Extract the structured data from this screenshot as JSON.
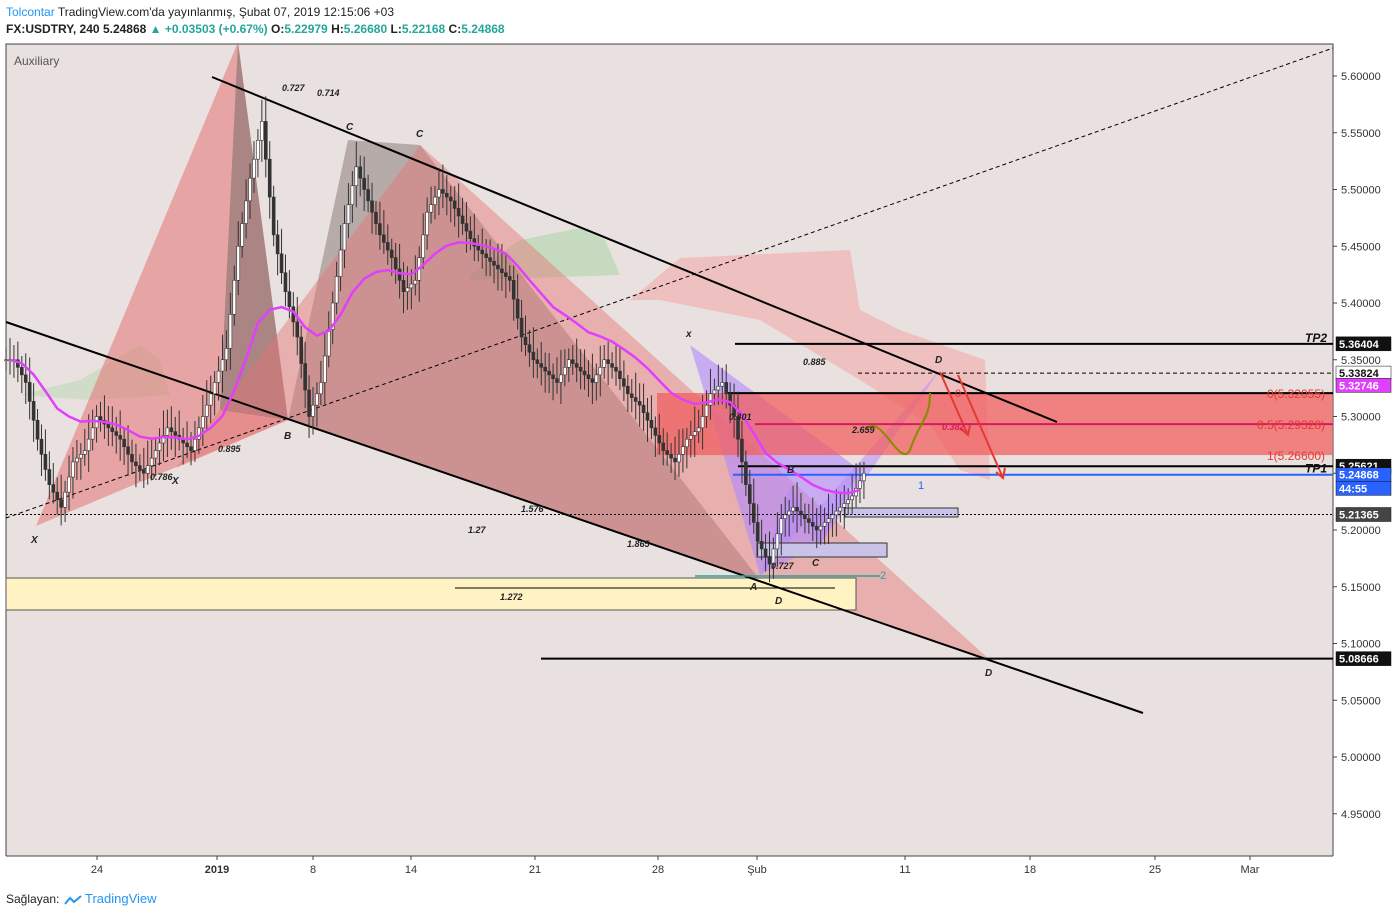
{
  "header": {
    "author": "Tolcontar",
    "published": "TradingView.com'da yayınlanmış, Şubat 07, 2019 12:15:06 +03",
    "symbol": "FX:USDTRY, 240",
    "last": "5.24868",
    "change": "+0.03503 (+0.67%)",
    "o_label": "O:",
    "o": "5.22979",
    "h_label": "H:",
    "h": "5.26680",
    "l_label": "L:",
    "l": "5.22168",
    "c_label": "C:",
    "c": "5.24868"
  },
  "footer": {
    "provider_label": "Sağlayan:",
    "logo_text": "TradingView"
  },
  "colors": {
    "up": "#26a69a",
    "down": "#ef5350",
    "candle": "#333333",
    "ma": "#e040fb",
    "pattern_red": "#e57373",
    "pattern_gray": "#7a6a6a",
    "pattern_purple": "#b388ff",
    "cloud_red": "#f4a6a6",
    "cloud_green": "#b7d7b0",
    "zone_red": "#f06060",
    "zone_yellow": "#fff3c4",
    "accent": "#2962ff"
  },
  "chart_data": {
    "type": "candlestick",
    "title": "",
    "study_label": "Auxiliary",
    "ylim": [
      4.915,
      5.635
    ],
    "y_ticks": [
      "5.60000",
      "5.55000",
      "5.50000",
      "5.45000",
      "5.40000",
      "5.35000",
      "5.30000",
      "5.25000",
      "5.20000",
      "5.15000",
      "5.10000",
      "5.05000",
      "5.00000",
      "4.95000"
    ],
    "x_ticks": [
      "24",
      "2019",
      "8",
      "14",
      "21",
      "28",
      "Şub",
      "11",
      "18",
      "25",
      "Mar"
    ],
    "price_labels": [
      {
        "text": "5.36404",
        "value": 5.36404,
        "style": "black"
      },
      {
        "text": "5.33824",
        "value": 5.33824,
        "style": "white"
      },
      {
        "text": "5.32746",
        "value": 5.32746,
        "style": "magenta"
      },
      {
        "text": "5.25621",
        "value": 5.25621,
        "style": "black"
      },
      {
        "text": "5.24868",
        "value": 5.24868,
        "style": "blue"
      },
      {
        "text": "44:55",
        "value": 5.23668,
        "style": "blue"
      },
      {
        "text": "5.21365",
        "value": 5.21365,
        "style": "gray"
      },
      {
        "text": "5.08666",
        "value": 5.08666,
        "style": "black"
      }
    ],
    "fib_labels": [
      {
        "text": "0(5.32055)",
        "value": 5.32055
      },
      {
        "text": "0.5(5.29328)",
        "value": 5.29328
      },
      {
        "text": "1(5.26600)",
        "value": 5.266
      }
    ],
    "targets": [
      {
        "text": "TP2",
        "value": 5.36404
      },
      {
        "text": "TP1",
        "value": 5.24868
      }
    ],
    "pattern_ratios": [
      "0.727",
      "0.714",
      "0.895",
      "0.786",
      "1.27",
      "1.576",
      "1.865",
      "1.272",
      "0.885",
      "0.401",
      "2.659",
      "0.727",
      "0.382"
    ],
    "pattern_points": [
      "X",
      "B",
      "C",
      "C",
      "x",
      "X",
      "A",
      "B",
      "C",
      "D",
      "D",
      "D"
    ],
    "misc_labels": [
      "1",
      "2",
      "0"
    ],
    "price_series_close": [
      5.35,
      5.33,
      5.28,
      5.24,
      5.22,
      5.26,
      5.27,
      5.3,
      5.29,
      5.28,
      5.26,
      5.25,
      5.27,
      5.29,
      5.28,
      5.27,
      5.3,
      5.33,
      5.36,
      5.45,
      5.51,
      5.56,
      5.46,
      5.41,
      5.37,
      5.3,
      5.33,
      5.4,
      5.47,
      5.52,
      5.49,
      5.46,
      5.44,
      5.41,
      5.42,
      5.48,
      5.5,
      5.49,
      5.47,
      5.45,
      5.44,
      5.43,
      5.42,
      5.37,
      5.35,
      5.34,
      5.33,
      5.35,
      5.34,
      5.33,
      5.35,
      5.34,
      5.32,
      5.31,
      5.29,
      5.27,
      5.26,
      5.28,
      5.29,
      5.32,
      5.33,
      5.3,
      5.24,
      5.19,
      5.17,
      5.21,
      5.22,
      5.21,
      5.2,
      5.21,
      5.22,
      5.23,
      5.25
    ]
  }
}
